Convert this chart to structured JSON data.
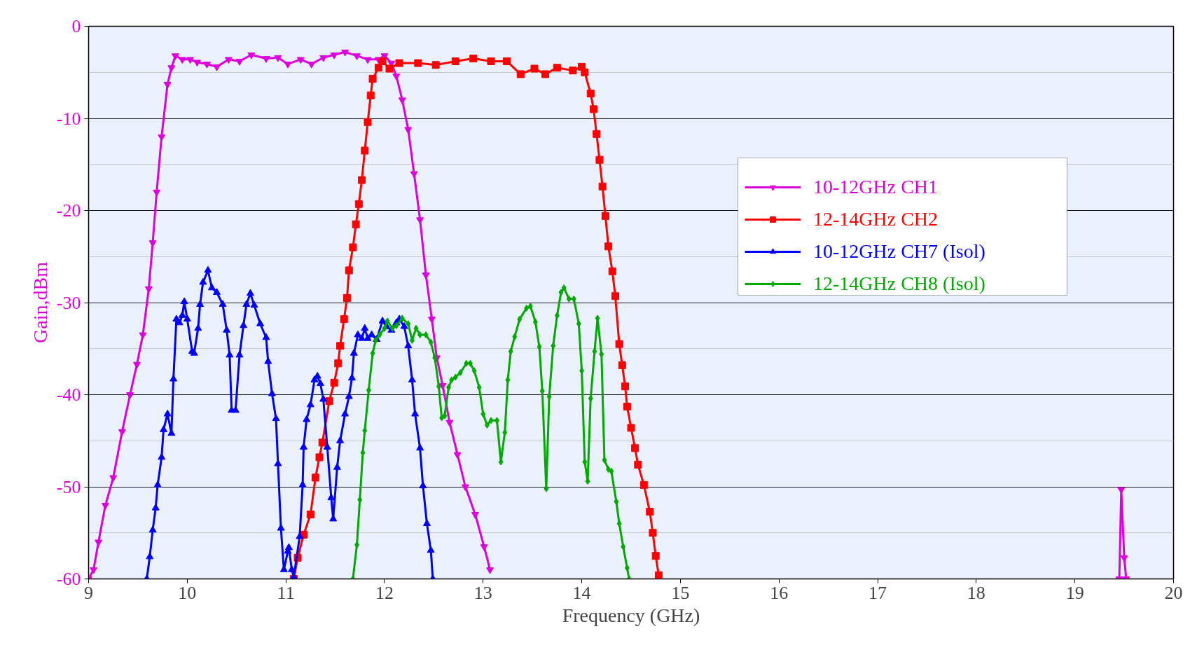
{
  "chart_data": {
    "type": "line",
    "xlabel": "Frequency (GHz)",
    "ylabel": "Gain,dBm",
    "xlim": [
      9,
      20
    ],
    "ylim": [
      -60,
      0
    ],
    "xticks": [
      9,
      10,
      11,
      12,
      13,
      14,
      15,
      16,
      17,
      18,
      19,
      20
    ],
    "yticks": [
      -60,
      -50,
      -40,
      -30,
      -20,
      -10,
      0
    ],
    "grid": true,
    "legend": "top right",
    "line_style": "solid",
    "series": [
      {
        "name": "10-12GHz CH1",
        "color": "#dd00dd",
        "marker": "triangle_down",
        "x": [
          9.0,
          9.05,
          9.1,
          9.17,
          9.25,
          9.34,
          9.42,
          9.49,
          9.55,
          9.61,
          9.65,
          9.69,
          9.74,
          9.8,
          9.84,
          9.88,
          9.95,
          10.03,
          10.1,
          10.2,
          10.3,
          10.42,
          10.53,
          10.65,
          10.8,
          10.92,
          11.02,
          11.15,
          11.26,
          11.38,
          11.49,
          11.6,
          11.72,
          11.83,
          11.94,
          12.0,
          12.07,
          12.12,
          12.18,
          12.24,
          12.3,
          12.36,
          12.42,
          12.48,
          12.53,
          12.59,
          12.66,
          12.74,
          12.82,
          12.92,
          13.01,
          13.07,
          15.0,
          19.45,
          19.47,
          19.5,
          19.52
        ],
        "values": [
          -60,
          -59,
          -56,
          -52,
          -49,
          -44,
          -40,
          -36.7,
          -33.5,
          -28.5,
          -23.5,
          -18,
          -12,
          -6.3,
          -4.5,
          -3.2,
          -3.6,
          -3.6,
          -3.9,
          -4.1,
          -4.4,
          -3.6,
          -3.8,
          -3.1,
          -3.5,
          -3.4,
          -4.1,
          -3.6,
          -4.1,
          -3.4,
          -3.1,
          -2.8,
          -3.2,
          -3.6,
          -3.6,
          -3.2,
          -4,
          -5.4,
          -8,
          -11.2,
          -16,
          -21,
          -27,
          -31.8,
          -36,
          -39,
          -43,
          -46.5,
          -50,
          -53,
          -56.5,
          -59,
          null,
          -60,
          -50.3,
          -57.7,
          -60
        ]
      },
      {
        "name": "12-14GHz CH2",
        "color": "#ff0000",
        "marker": "square",
        "x": [
          11.08,
          11.12,
          11.18,
          11.25,
          11.3,
          11.34,
          11.37,
          11.44,
          11.49,
          11.53,
          11.55,
          11.59,
          11.62,
          11.64,
          11.68,
          11.71,
          11.74,
          11.77,
          11.8,
          11.83,
          11.86,
          11.88,
          11.94,
          11.98,
          12.05,
          12.15,
          12.34,
          12.52,
          12.72,
          12.9,
          13.08,
          13.24,
          13.38,
          13.52,
          13.63,
          13.75,
          13.91,
          14.0,
          14.03,
          14.09,
          14.12,
          14.15,
          14.18,
          14.21,
          14.24,
          14.27,
          14.31,
          14.34,
          14.38,
          14.41,
          14.44,
          14.46,
          14.5,
          14.54,
          14.57,
          14.63,
          14.69,
          14.72,
          14.75,
          14.78
        ],
        "values": [
          -60,
          -57.7,
          -55.2,
          -53,
          -49,
          -46.8,
          -45.2,
          -40.7,
          -38.7,
          -36.6,
          -34.7,
          -31.8,
          -29.5,
          -26.5,
          -24,
          -21.5,
          -19.3,
          -16.7,
          -13.5,
          -10.4,
          -7.5,
          -5.7,
          -4.5,
          -3.8,
          -4.6,
          -4,
          -4,
          -4.2,
          -3.8,
          -3.5,
          -3.8,
          -3.8,
          -5.2,
          -4.6,
          -5.2,
          -4.5,
          -4.8,
          -4.4,
          -5,
          -7.3,
          -9,
          -11.7,
          -14.5,
          -17.4,
          -20.6,
          -23.9,
          -26.6,
          -29.3,
          -34.5,
          -36.8,
          -39.1,
          -41.3,
          -43.6,
          -45.8,
          -47.6,
          -49.8,
          -52.7,
          -55,
          -57.5,
          -59.6
        ]
      },
      {
        "name": "10-12GHz CH7 (Isol)",
        "color": "#0000ff",
        "marker": "triangle",
        "x": [
          9.59,
          9.62,
          9.65,
          9.68,
          9.7,
          9.74,
          9.76,
          9.8,
          9.84,
          9.86,
          9.89,
          9.92,
          9.95,
          9.97,
          10.0,
          10.05,
          10.07,
          10.11,
          10.13,
          10.16,
          10.21,
          10.25,
          10.3,
          10.36,
          10.4,
          10.43,
          10.45,
          10.49,
          10.53,
          10.57,
          10.6,
          10.64,
          10.68,
          10.74,
          10.8,
          10.82,
          10.86,
          10.9,
          10.92,
          10.95,
          10.98,
          11.02,
          11.03,
          11.06,
          11.08,
          11.14,
          11.17,
          11.18,
          11.21,
          11.25,
          11.29,
          11.32,
          11.35,
          11.38,
          11.42,
          11.46,
          11.48,
          11.52,
          11.55,
          11.6,
          11.64,
          11.67,
          11.69,
          11.73,
          11.77,
          11.8,
          11.83,
          11.87,
          11.92,
          11.98,
          12.02,
          12.07,
          12.12,
          12.15,
          12.2,
          12.24,
          12.28,
          12.31,
          12.36,
          12.39,
          12.43,
          12.47,
          12.49
        ],
        "values": [
          -60,
          -57.6,
          -54.7,
          -52.3,
          -49.8,
          -46.8,
          -43.8,
          -42.1,
          -44.2,
          -38.3,
          -31.8,
          -32.2,
          -31.4,
          -29.9,
          -31.8,
          -35.3,
          -35.5,
          -32.8,
          -30.2,
          -27.8,
          -26.5,
          -28.4,
          -28.9,
          -30.2,
          -33,
          -35.7,
          -41.7,
          -41.7,
          -35.7,
          -32.5,
          -30.2,
          -29,
          -30.3,
          -32.3,
          -33.8,
          -36.4,
          -39.9,
          -42.6,
          -47.5,
          -54.5,
          -59,
          -57,
          -56.6,
          -59,
          -59.8,
          -55.4,
          -49.8,
          -45.7,
          -42.7,
          -41.1,
          -38.4,
          -38,
          -38.8,
          -40.5,
          -45.7,
          -51.2,
          -53.5,
          -47.9,
          -45,
          -42.1,
          -40.2,
          -38.2,
          -35.5,
          -33.5,
          -33.9,
          -32.8,
          -33.9,
          -33.5,
          -34,
          -32,
          -32.6,
          -33,
          -32.2,
          -31.8,
          -32.6,
          -34.7,
          -38.4,
          -42.1,
          -45.8,
          -49.9,
          -54,
          -56.9,
          -60
        ]
      },
      {
        "name": "12-14GHz CH8 (Isol)",
        "color": "#00aa00",
        "marker": "diamond",
        "x": [
          11.68,
          11.72,
          11.75,
          11.78,
          11.8,
          11.84,
          11.88,
          11.91,
          11.95,
          12.0,
          12.03,
          12.08,
          12.12,
          12.18,
          12.24,
          12.28,
          12.32,
          12.36,
          12.42,
          12.47,
          12.51,
          12.55,
          12.58,
          12.61,
          12.65,
          12.68,
          12.72,
          12.77,
          12.83,
          12.87,
          12.91,
          12.96,
          13.0,
          13.04,
          13.08,
          13.14,
          13.18,
          13.22,
          13.25,
          13.28,
          13.32,
          13.37,
          13.44,
          13.48,
          13.53,
          13.57,
          13.6,
          13.64,
          13.67,
          13.71,
          13.75,
          13.79,
          13.82,
          13.87,
          13.92,
          13.97,
          14.0,
          14.03,
          14.06,
          14.09,
          14.13,
          14.16,
          14.2,
          14.23,
          14.27,
          14.3,
          14.35,
          14.38,
          14.42,
          14.46,
          14.48
        ],
        "values": [
          -60,
          -56.3,
          -51.4,
          -46.3,
          -43.9,
          -39.5,
          -35.5,
          -34.1,
          -33.5,
          -32.8,
          -32,
          -32.8,
          -32.5,
          -31.7,
          -32.3,
          -34.1,
          -32.8,
          -33.5,
          -33.5,
          -34.3,
          -36,
          -39.1,
          -42.5,
          -42.3,
          -39.2,
          -38.4,
          -38.1,
          -37.6,
          -36.6,
          -36.6,
          -37.4,
          -39.2,
          -42.1,
          -43.3,
          -42.8,
          -42.8,
          -47.3,
          -44.1,
          -38.4,
          -35.3,
          -33.7,
          -31.8,
          -30.6,
          -30.4,
          -32.1,
          -34.8,
          -39.6,
          -50.2,
          -40.2,
          -34.7,
          -31.4,
          -28.9,
          -28.4,
          -29.6,
          -29.6,
          -32.3,
          -37.4,
          -47.3,
          -49.4,
          -40.4,
          -35.3,
          -31.7,
          -35.6,
          -47.1,
          -48.1,
          -48.3,
          -51.6,
          -54,
          -56.5,
          -58.8,
          -60
        ]
      }
    ]
  }
}
